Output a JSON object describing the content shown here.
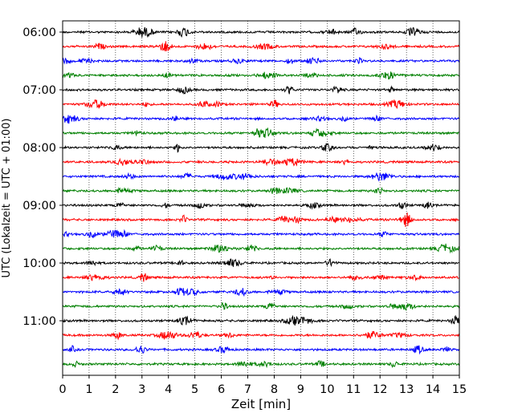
{
  "chart_data": {
    "type": "line",
    "title": "",
    "xlabel": "Zeit  [min]",
    "ylabel": "UTC (Lokalzeit = UTC + 01:00)",
    "xlim": [
      0,
      15
    ],
    "x_ticks": [
      "0",
      "1",
      "2",
      "3",
      "4",
      "5",
      "6",
      "7",
      "8",
      "9",
      "10",
      "11",
      "12",
      "13",
      "14",
      "15"
    ],
    "y_tick_labels": [
      "06:00",
      "07:00",
      "08:00",
      "09:00",
      "10:00",
      "11:00"
    ],
    "grid": "vertical dotted lines at each minute",
    "trace_colors": [
      "#000000",
      "#ff0000",
      "#0000ff",
      "#008000"
    ],
    "series": [
      {
        "start": "06:00",
        "color": "#000000"
      },
      {
        "start": "06:15",
        "color": "#ff0000"
      },
      {
        "start": "06:30",
        "color": "#0000ff"
      },
      {
        "start": "06:45",
        "color": "#008000"
      },
      {
        "start": "07:00",
        "color": "#000000"
      },
      {
        "start": "07:15",
        "color": "#ff0000"
      },
      {
        "start": "07:30",
        "color": "#0000ff"
      },
      {
        "start": "07:45",
        "color": "#008000"
      },
      {
        "start": "08:00",
        "color": "#000000"
      },
      {
        "start": "08:15",
        "color": "#ff0000"
      },
      {
        "start": "08:30",
        "color": "#0000ff"
      },
      {
        "start": "08:45",
        "color": "#008000"
      },
      {
        "start": "09:00",
        "color": "#000000"
      },
      {
        "start": "09:15",
        "color": "#ff0000"
      },
      {
        "start": "09:30",
        "color": "#0000ff"
      },
      {
        "start": "09:45",
        "color": "#008000"
      },
      {
        "start": "10:00",
        "color": "#000000"
      },
      {
        "start": "10:15",
        "color": "#ff0000"
      },
      {
        "start": "10:30",
        "color": "#0000ff"
      },
      {
        "start": "10:45",
        "color": "#008000"
      },
      {
        "start": "11:00",
        "color": "#000000"
      },
      {
        "start": "11:15",
        "color": "#ff0000"
      },
      {
        "start": "11:30",
        "color": "#0000ff"
      },
      {
        "start": "11:45",
        "color": "#008000"
      }
    ]
  }
}
